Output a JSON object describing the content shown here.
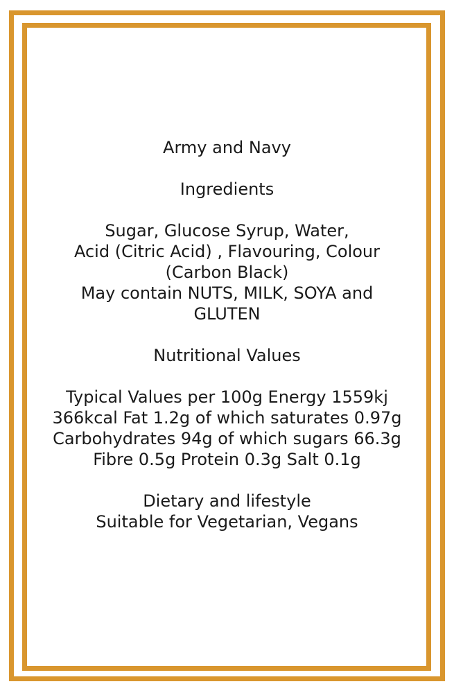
{
  "colors": {
    "border": "#d9962e",
    "text": "#1a1a1a",
    "background": "#ffffff"
  },
  "label": {
    "product_title": "Army and Navy",
    "ingredients": {
      "heading": "Ingredients",
      "lines": [
        "Sugar, Glucose Syrup, Water,",
        "Acid (Citric Acid) , Flavouring, Colour",
        "(Carbon Black)",
        "May contain NUTS, MILK, SOYA and",
        "GLUTEN"
      ]
    },
    "nutrition": {
      "heading": "Nutritional Values",
      "lines": [
        "Typical Values per 100g Energy 1559kj",
        "366kcal Fat 1.2g of which saturates 0.97g",
        "Carbohydrates 94g of which sugars 66.3g",
        "Fibre 0.5g Protein 0.3g Salt 0.1g"
      ]
    },
    "dietary": {
      "heading": "Dietary and lifestyle",
      "line": "Suitable for Vegetarian, Vegans"
    }
  }
}
